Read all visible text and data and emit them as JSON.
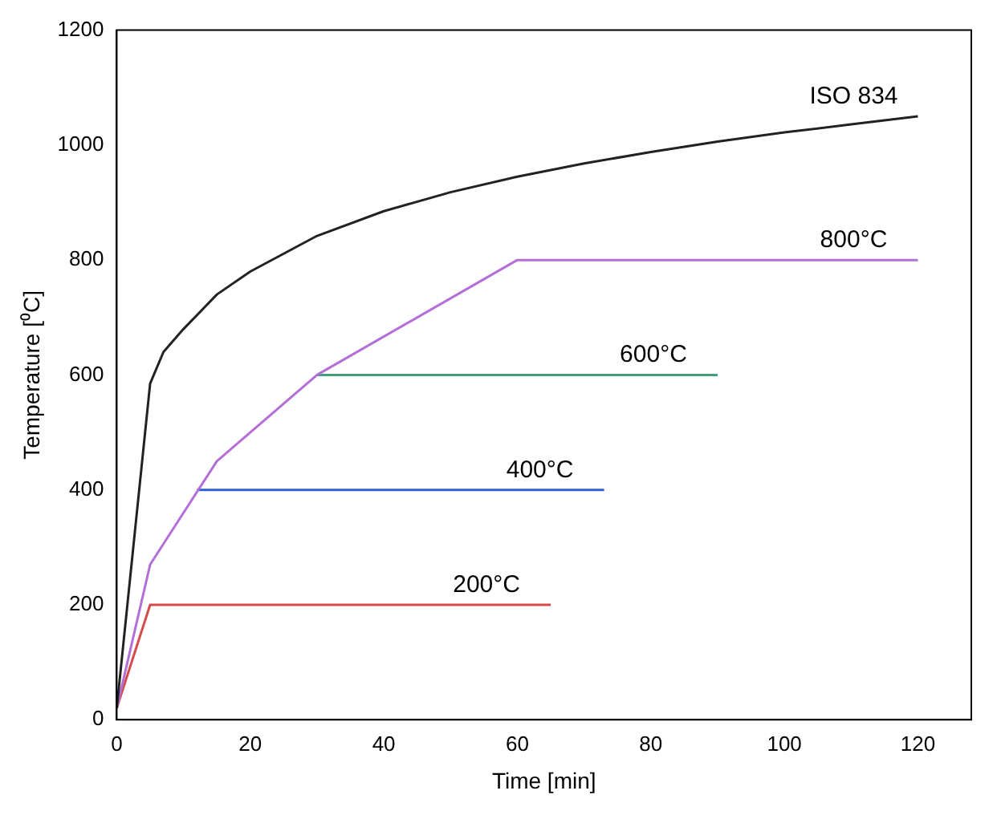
{
  "chart_data": {
    "type": "line",
    "xlabel": "Time [min]",
    "ylabel": "Temperature [⁰C]",
    "xlim": [
      0,
      128
    ],
    "xticks": [
      0,
      20,
      40,
      60,
      80,
      100,
      120
    ],
    "ylim": [
      0,
      1200
    ],
    "yticks": [
      0,
      200,
      400,
      600,
      800,
      1000,
      1200
    ],
    "grid": false,
    "legend": false,
    "marker": "none",
    "line_style": "solid",
    "series": [
      {
        "name": "ISO 834",
        "color": "#222222",
        "x": [
          0,
          5,
          7,
          10,
          15,
          20,
          30,
          40,
          50,
          60,
          70,
          80,
          90,
          100,
          110,
          120
        ],
        "values": [
          20,
          585,
          640,
          680,
          740,
          780,
          842,
          885,
          918,
          945,
          968,
          988,
          1006,
          1022,
          1036,
          1050
        ]
      },
      {
        "name": "800°C",
        "color": "#b36fd6",
        "x": [
          0,
          5,
          15,
          30,
          60,
          120
        ],
        "values": [
          20,
          270,
          450,
          600,
          800,
          800
        ]
      },
      {
        "name": "600°C",
        "color": "#3fa07a",
        "x": [
          30,
          90
        ],
        "values": [
          600,
          600
        ]
      },
      {
        "name": "400°C",
        "color": "#2f5fd6",
        "x": [
          12,
          73
        ],
        "values": [
          400,
          400
        ]
      },
      {
        "name": "200°C",
        "color": "#d64a4a",
        "x": [
          0,
          5,
          65
        ],
        "values": [
          20,
          200,
          200
        ]
      }
    ]
  }
}
